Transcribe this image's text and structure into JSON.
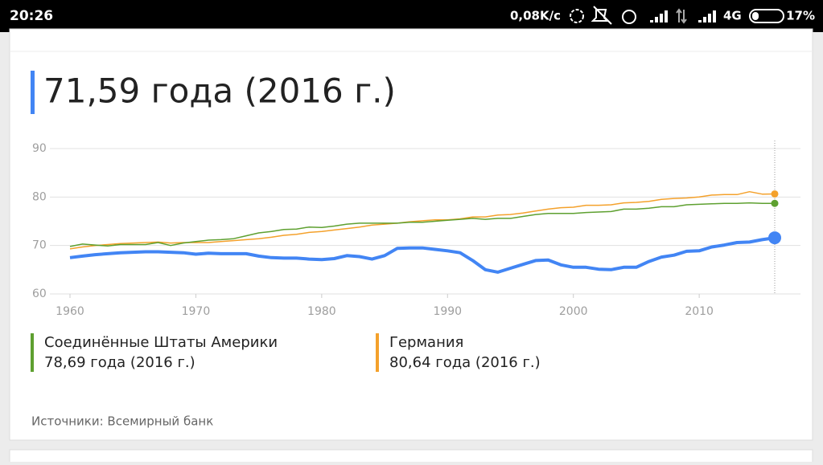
{
  "status_bar": {
    "time": "20:26",
    "speed": "0,08K/с",
    "network": "4G",
    "battery": "17%"
  },
  "headline": "71,59 года (2016 г.)",
  "legend": [
    {
      "name": "Соединённые Штаты Америки",
      "summary": "78,69 года (2016 г.)"
    },
    {
      "name": "Германия",
      "summary": "80,64 года (2016 г.)"
    }
  ],
  "source": "Источники: Всемирный банк",
  "chart_data": {
    "type": "line",
    "x": [
      1960,
      1961,
      1962,
      1963,
      1964,
      1965,
      1966,
      1967,
      1968,
      1969,
      1970,
      1971,
      1972,
      1973,
      1974,
      1975,
      1976,
      1977,
      1978,
      1979,
      1980,
      1981,
      1982,
      1983,
      1984,
      1985,
      1986,
      1987,
      1988,
      1989,
      1990,
      1991,
      1992,
      1993,
      1994,
      1995,
      1996,
      1997,
      1998,
      1999,
      2000,
      2001,
      2002,
      2003,
      2004,
      2005,
      2006,
      2007,
      2008,
      2009,
      2010,
      2011,
      2012,
      2013,
      2014,
      2015,
      2016
    ],
    "xlim": [
      1960,
      2016
    ],
    "xticks": [
      1960,
      1970,
      1980,
      1990,
      2000,
      2010
    ],
    "ylim": [
      60,
      90
    ],
    "yticks": [
      60,
      70,
      80,
      90
    ],
    "grid": true,
    "series": [
      {
        "name": "Германия",
        "color": "#f4a12b",
        "width": 1.5,
        "values": [
          69.3,
          69.7,
          70.0,
          70.2,
          70.4,
          70.5,
          70.6,
          70.7,
          70.5,
          70.6,
          70.6,
          70.6,
          70.8,
          71.0,
          71.2,
          71.4,
          71.7,
          72.1,
          72.3,
          72.7,
          72.9,
          73.2,
          73.5,
          73.8,
          74.2,
          74.4,
          74.6,
          74.9,
          75.1,
          75.3,
          75.3,
          75.5,
          75.9,
          75.9,
          76.3,
          76.4,
          76.7,
          77.1,
          77.5,
          77.8,
          77.9,
          78.3,
          78.3,
          78.4,
          78.8,
          78.9,
          79.1,
          79.5,
          79.7,
          79.8,
          80.0,
          80.4,
          80.5,
          80.5,
          81.1,
          80.6,
          80.64
        ]
      },
      {
        "name": "Соединённые Штаты Америки",
        "color": "#5ea030",
        "width": 1.5,
        "values": [
          69.8,
          70.3,
          70.1,
          69.9,
          70.2,
          70.2,
          70.2,
          70.6,
          70.0,
          70.5,
          70.8,
          71.1,
          71.2,
          71.4,
          72.0,
          72.6,
          72.9,
          73.3,
          73.4,
          73.8,
          73.7,
          74.0,
          74.4,
          74.6,
          74.6,
          74.6,
          74.6,
          74.8,
          74.8,
          75.0,
          75.2,
          75.4,
          75.6,
          75.4,
          75.6,
          75.6,
          76.0,
          76.4,
          76.6,
          76.6,
          76.6,
          76.8,
          76.9,
          77.0,
          77.5,
          77.5,
          77.7,
          78.0,
          78.0,
          78.4,
          78.5,
          78.6,
          78.7,
          78.7,
          78.8,
          78.7,
          78.69
        ]
      },
      {
        "color": "#4285f4",
        "width": 4,
        "values": [
          67.5,
          67.8,
          68.1,
          68.3,
          68.5,
          68.6,
          68.7,
          68.7,
          68.6,
          68.5,
          68.2,
          68.4,
          68.3,
          68.3,
          68.3,
          67.8,
          67.5,
          67.4,
          67.4,
          67.2,
          67.1,
          67.3,
          67.9,
          67.7,
          67.2,
          67.9,
          69.4,
          69.5,
          69.5,
          69.2,
          68.9,
          68.5,
          66.9,
          65.0,
          64.5,
          65.3,
          66.1,
          66.9,
          67.0,
          66.0,
          65.5,
          65.5,
          65.1,
          65.0,
          65.5,
          65.5,
          66.7,
          67.6,
          68.0,
          68.8,
          68.9,
          69.7,
          70.1,
          70.6,
          70.7,
          71.2,
          71.59
        ]
      }
    ]
  }
}
